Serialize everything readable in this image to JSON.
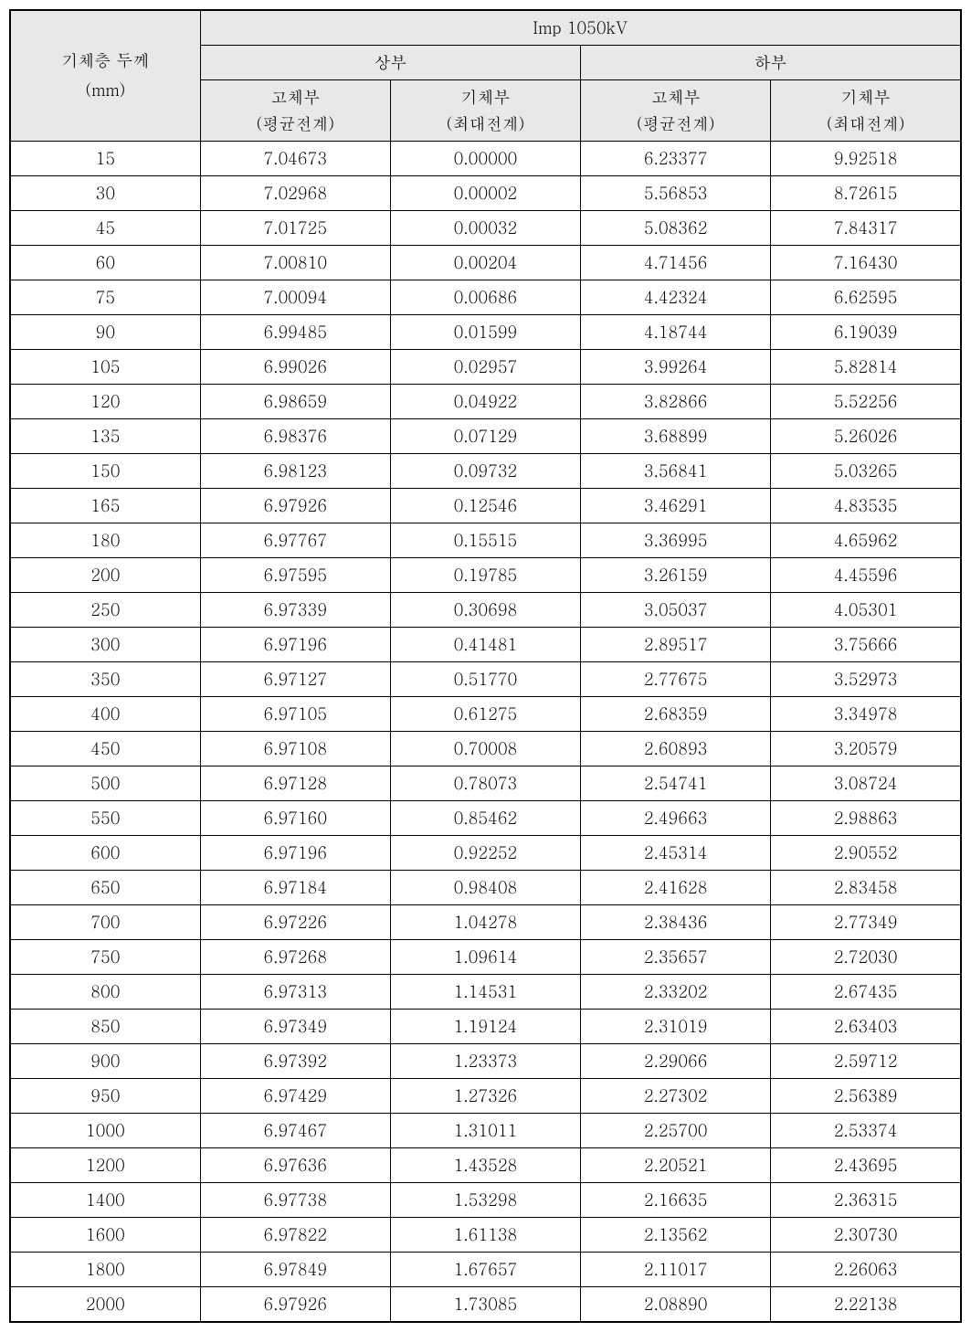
{
  "table": {
    "header_background": "#e8e8e8",
    "border_color": "#000000",
    "outer_border_width": 2,
    "inner_border_width": 1,
    "font_size": 18,
    "row_header_label_line1": "기체층 두께",
    "row_header_label_line2": "(mm)",
    "top_header": "Imp 1050kV",
    "group_upper": "상부",
    "group_lower": "하부",
    "sub_solid_line1": "고체부",
    "sub_solid_line2": "(평균전계)",
    "sub_gas_line1": "기체부",
    "sub_gas_line2": "(최대전계)",
    "columns": [
      "thickness",
      "upper_solid",
      "upper_gas",
      "lower_solid",
      "lower_gas"
    ],
    "rows": [
      [
        "15",
        "7.04673",
        "0.00000",
        "6.23377",
        "9.92518"
      ],
      [
        "30",
        "7.02968",
        "0.00002",
        "5.56853",
        "8.72615"
      ],
      [
        "45",
        "7.01725",
        "0.00032",
        "5.08362",
        "7.84317"
      ],
      [
        "60",
        "7.00810",
        "0.00204",
        "4.71456",
        "7.16430"
      ],
      [
        "75",
        "7.00094",
        "0.00686",
        "4.42324",
        "6.62595"
      ],
      [
        "90",
        "6.99485",
        "0.01599",
        "4.18744",
        "6.19039"
      ],
      [
        "105",
        "6.99026",
        "0.02957",
        "3.99264",
        "5.82814"
      ],
      [
        "120",
        "6.98659",
        "0.04922",
        "3.82866",
        "5.52256"
      ],
      [
        "135",
        "6.98376",
        "0.07129",
        "3.68899",
        "5.26026"
      ],
      [
        "150",
        "6.98123",
        "0.09732",
        "3.56841",
        "5.03265"
      ],
      [
        "165",
        "6.97926",
        "0.12546",
        "3.46291",
        "4.83535"
      ],
      [
        "180",
        "6.97767",
        "0.15515",
        "3.36995",
        "4.65962"
      ],
      [
        "200",
        "6.97595",
        "0.19785",
        "3.26159",
        "4.45596"
      ],
      [
        "250",
        "6.97339",
        "0.30698",
        "3.05037",
        "4.05301"
      ],
      [
        "300",
        "6.97196",
        "0.41481",
        "2.89517",
        "3.75666"
      ],
      [
        "350",
        "6.97127",
        "0.51770",
        "2.77675",
        "3.52973"
      ],
      [
        "400",
        "6.97105",
        "0.61275",
        "2.68359",
        "3.34978"
      ],
      [
        "450",
        "6.97108",
        "0.70008",
        "2.60893",
        "3.20579"
      ],
      [
        "500",
        "6.97128",
        "0.78073",
        "2.54741",
        "3.08724"
      ],
      [
        "550",
        "6.97160",
        "0.85462",
        "2.49663",
        "2.98863"
      ],
      [
        "600",
        "6.97196",
        "0.92252",
        "2.45314",
        "2.90552"
      ],
      [
        "650",
        "6.97184",
        "0.98408",
        "2.41628",
        "2.83458"
      ],
      [
        "700",
        "6.97226",
        "1.04278",
        "2.38436",
        "2.77349"
      ],
      [
        "750",
        "6.97268",
        "1.09614",
        "2.35657",
        "2.72030"
      ],
      [
        "800",
        "6.97313",
        "1.14531",
        "2.33202",
        "2.67435"
      ],
      [
        "850",
        "6.97349",
        "1.19124",
        "2.31019",
        "2.63403"
      ],
      [
        "900",
        "6.97392",
        "1.23373",
        "2.29066",
        "2.59712"
      ],
      [
        "950",
        "6.97429",
        "1.27326",
        "2.27302",
        "2.56389"
      ],
      [
        "1000",
        "6.97467",
        "1.31011",
        "2.25700",
        "2.53374"
      ],
      [
        "1200",
        "6.97636",
        "1.43528",
        "2.20521",
        "2.43695"
      ],
      [
        "1400",
        "6.97738",
        "1.53298",
        "2.16635",
        "2.36315"
      ],
      [
        "1600",
        "6.97822",
        "1.61138",
        "2.13562",
        "2.30730"
      ],
      [
        "1800",
        "6.97849",
        "1.67657",
        "2.11017",
        "2.26063"
      ],
      [
        "2000",
        "6.97926",
        "1.73085",
        "2.08890",
        "2.22138"
      ]
    ]
  }
}
